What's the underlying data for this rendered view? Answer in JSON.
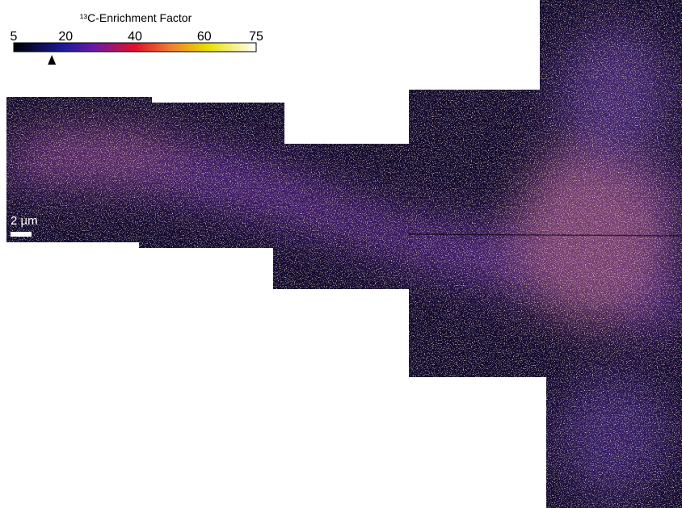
{
  "colorbar": {
    "title": "¹³C-Enrichment Factor",
    "range": [
      5,
      75
    ],
    "ticks": [
      5,
      20,
      40,
      60,
      75
    ],
    "marker": 16
  },
  "scalebar": {
    "label": "2 µm"
  }
}
